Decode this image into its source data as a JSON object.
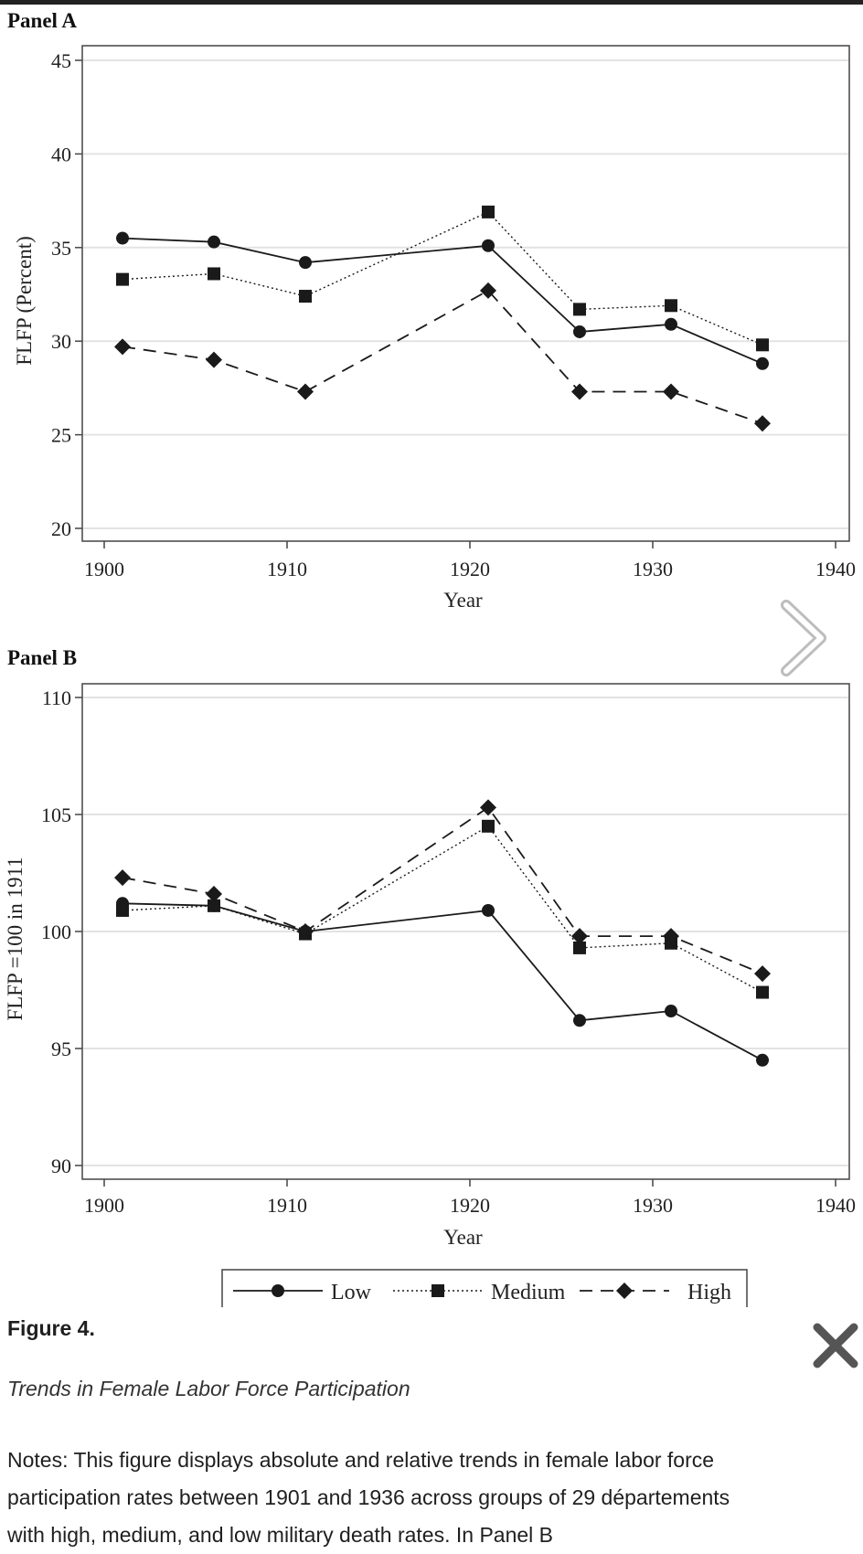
{
  "figure": {
    "number": "Figure 4.",
    "title": "Trends in Female Labor Force Participation",
    "notes": "Notes: This figure displays absolute and relative trends in female labor force participation rates between 1901 and 1936 across groups of 29 départements with high, medium, and low military death rates. In Panel B"
  },
  "controls": {
    "next_icon": "chevron-right-icon",
    "close_icon": "close-icon"
  },
  "colors": {
    "series": "#1a1a1a",
    "grid": "#e3e3e3",
    "frame": "#444444"
  },
  "legend": {
    "items": [
      "Low",
      "Medium",
      "High"
    ]
  },
  "chart_data": [
    {
      "type": "line",
      "panel": "Panel A",
      "title": "Panel A",
      "xlabel": "Year",
      "ylabel": "FLFP (Percent)",
      "xlim": [
        1900,
        1940
      ],
      "ylim": [
        20,
        45
      ],
      "xticks": [
        1900,
        1910,
        1920,
        1930,
        1940
      ],
      "yticks": [
        20,
        25,
        30,
        35,
        40,
        45
      ],
      "grid": true,
      "x": [
        1901,
        1906,
        1911,
        1921,
        1926,
        1931,
        1936
      ],
      "series": [
        {
          "name": "Low",
          "marker": "circle",
          "dash": "solid",
          "values": [
            35.5,
            35.3,
            34.2,
            35.1,
            30.5,
            30.9,
            28.8
          ]
        },
        {
          "name": "Medium",
          "marker": "square",
          "dash": "dotted",
          "values": [
            33.3,
            33.6,
            32.4,
            36.9,
            31.7,
            31.9,
            29.8
          ]
        },
        {
          "name": "High",
          "marker": "diamond",
          "dash": "dashed",
          "values": [
            29.7,
            29.0,
            27.3,
            32.7,
            27.3,
            27.3,
            25.6
          ]
        }
      ]
    },
    {
      "type": "line",
      "panel": "Panel B",
      "title": "Panel B",
      "xlabel": "Year",
      "ylabel": "FLFP =100 in 1911",
      "xlim": [
        1900,
        1940
      ],
      "ylim": [
        90,
        110
      ],
      "xticks": [
        1900,
        1910,
        1920,
        1930,
        1940
      ],
      "yticks": [
        90,
        95,
        100,
        105,
        110
      ],
      "grid": true,
      "x": [
        1901,
        1906,
        1911,
        1921,
        1926,
        1931,
        1936
      ],
      "series": [
        {
          "name": "Low",
          "marker": "circle",
          "dash": "solid",
          "values": [
            101.2,
            101.1,
            100.0,
            100.9,
            96.2,
            96.6,
            94.5
          ]
        },
        {
          "name": "Medium",
          "marker": "square",
          "dash": "dotted",
          "values": [
            100.9,
            101.1,
            99.9,
            104.5,
            99.3,
            99.5,
            97.4
          ]
        },
        {
          "name": "High",
          "marker": "diamond",
          "dash": "dashed",
          "values": [
            102.3,
            101.6,
            100.0,
            105.3,
            99.8,
            99.8,
            98.2
          ]
        }
      ]
    }
  ]
}
